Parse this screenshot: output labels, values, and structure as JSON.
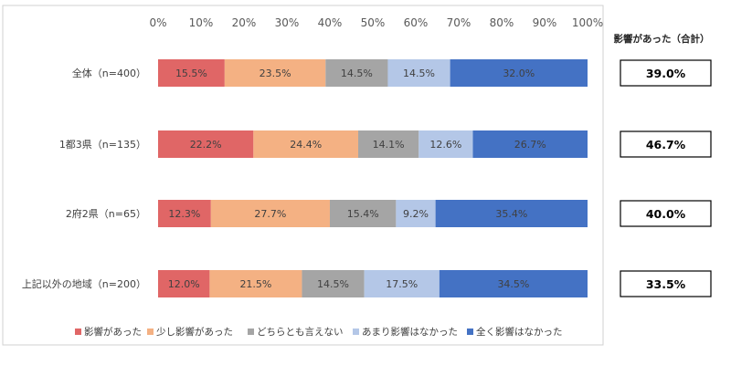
{
  "chart_data": {
    "type": "bar",
    "stacked": true,
    "orientation": "horizontal",
    "xlim": [
      0,
      100
    ],
    "x_ticks": [
      "0%",
      "10%",
      "20%",
      "30%",
      "40%",
      "50%",
      "60%",
      "70%",
      "80%",
      "90%",
      "100%"
    ],
    "categories": [
      "全体（n=400）",
      "1都3県（n=135）",
      "2府2県（n=65）",
      "上記以外の地域（n=200）"
    ],
    "series": [
      {
        "name": "影響があった",
        "color": "#e06666",
        "values": [
          15.5,
          22.2,
          12.3,
          12.0
        ]
      },
      {
        "name": "少し影響があった",
        "color": "#f4b183",
        "values": [
          23.5,
          24.4,
          27.7,
          21.5
        ]
      },
      {
        "name": "どちらとも言えない",
        "color": "#a5a5a5",
        "values": [
          14.5,
          14.1,
          15.4,
          14.5
        ]
      },
      {
        "name": "あまり影響はなかった",
        "color": "#b4c7e7",
        "values": [
          14.5,
          12.6,
          9.2,
          17.5
        ]
      },
      {
        "name": "全く影響はなかった",
        "color": "#4472c4",
        "values": [
          32.0,
          26.7,
          35.4,
          34.5
        ]
      }
    ],
    "value_labels": [
      [
        "15.5%",
        "23.5%",
        "14.5%",
        "14.5%",
        "32.0%"
      ],
      [
        "22.2%",
        "24.4%",
        "14.1%",
        "12.6%",
        "26.7%"
      ],
      [
        "12.3%",
        "27.7%",
        "15.4%",
        "9.2%",
        "35.4%"
      ],
      [
        "12.0%",
        "21.5%",
        "14.5%",
        "17.5%",
        "34.5%"
      ]
    ],
    "side_header": "影響があった（合計）",
    "side_values": [
      "39.0%",
      "46.7%",
      "40.0%",
      "33.5%"
    ],
    "legend_position": "bottom",
    "grid": false
  }
}
